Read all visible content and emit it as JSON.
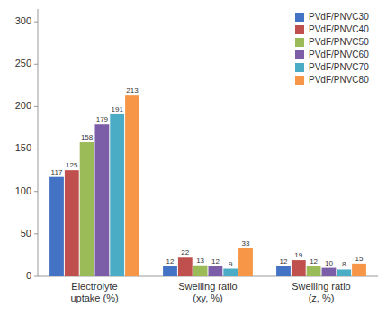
{
  "chart_data": {
    "type": "bar",
    "categories": [
      "Electrolyte\nuptake (%)",
      "Swelling ratio\n(xy, %)",
      "Swelling ratio\n(z, %)"
    ],
    "series": [
      {
        "name": "PVdF/PNVC30",
        "color": "#4472C4",
        "values": [
          117,
          12,
          12
        ]
      },
      {
        "name": "PVdF/PNVC40",
        "color": "#C0504D",
        "values": [
          125,
          22,
          19
        ]
      },
      {
        "name": "PVdF/PNVC50",
        "color": "#9BBB59",
        "values": [
          158,
          13,
          12
        ]
      },
      {
        "name": "PVdF/PNVC60",
        "color": "#7B5EA7",
        "values": [
          179,
          12,
          10
        ]
      },
      {
        "name": "PVdF/PNVC70",
        "color": "#4BACC6",
        "values": [
          191,
          9,
          8
        ]
      },
      {
        "name": "PVdF/PNVC80",
        "color": "#F79646",
        "values": [
          213,
          33,
          15
        ]
      }
    ],
    "ylim": [
      0,
      315
    ],
    "yticks": [
      0,
      50,
      100,
      150,
      200,
      250,
      300
    ],
    "grid": false,
    "legend": "upper right",
    "data_labels": true
  }
}
